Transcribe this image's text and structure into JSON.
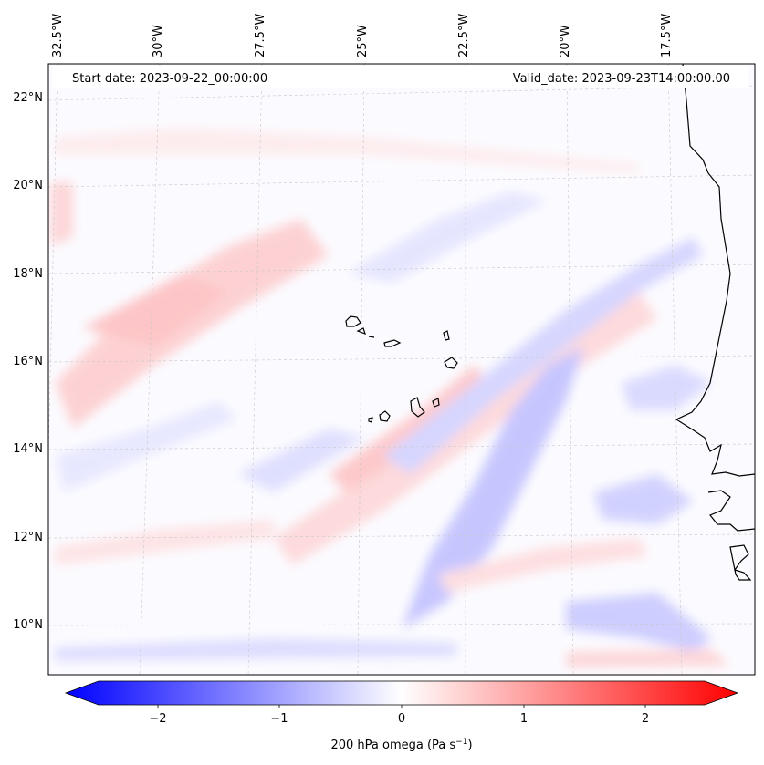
{
  "header": {
    "start_date": "Start date: 2023-09-22_00:00:00",
    "valid_date": "Valid_date: 2023-09-23T14:00:00.00"
  },
  "map": {
    "lon_labels": [
      "32.5°W",
      "30°W",
      "27.5°W",
      "25°W",
      "22.5°W",
      "20°W",
      "17.5°W"
    ],
    "lat_labels": [
      "22°N",
      "20°N",
      "18°N",
      "16°N",
      "14°N",
      "12°N",
      "10°N"
    ],
    "field_colors": {
      "negative": "#0000ff",
      "neutral": "#ffffff",
      "positive": "#ff0000"
    }
  },
  "colorbar": {
    "ticks": [
      "−2",
      "−1",
      "0",
      "1",
      "2"
    ],
    "label": "200 hPa omega (Pa s",
    "label_sup": "−1",
    "label_end": ")",
    "vmin": -2.6,
    "vmax": 2.6
  }
}
